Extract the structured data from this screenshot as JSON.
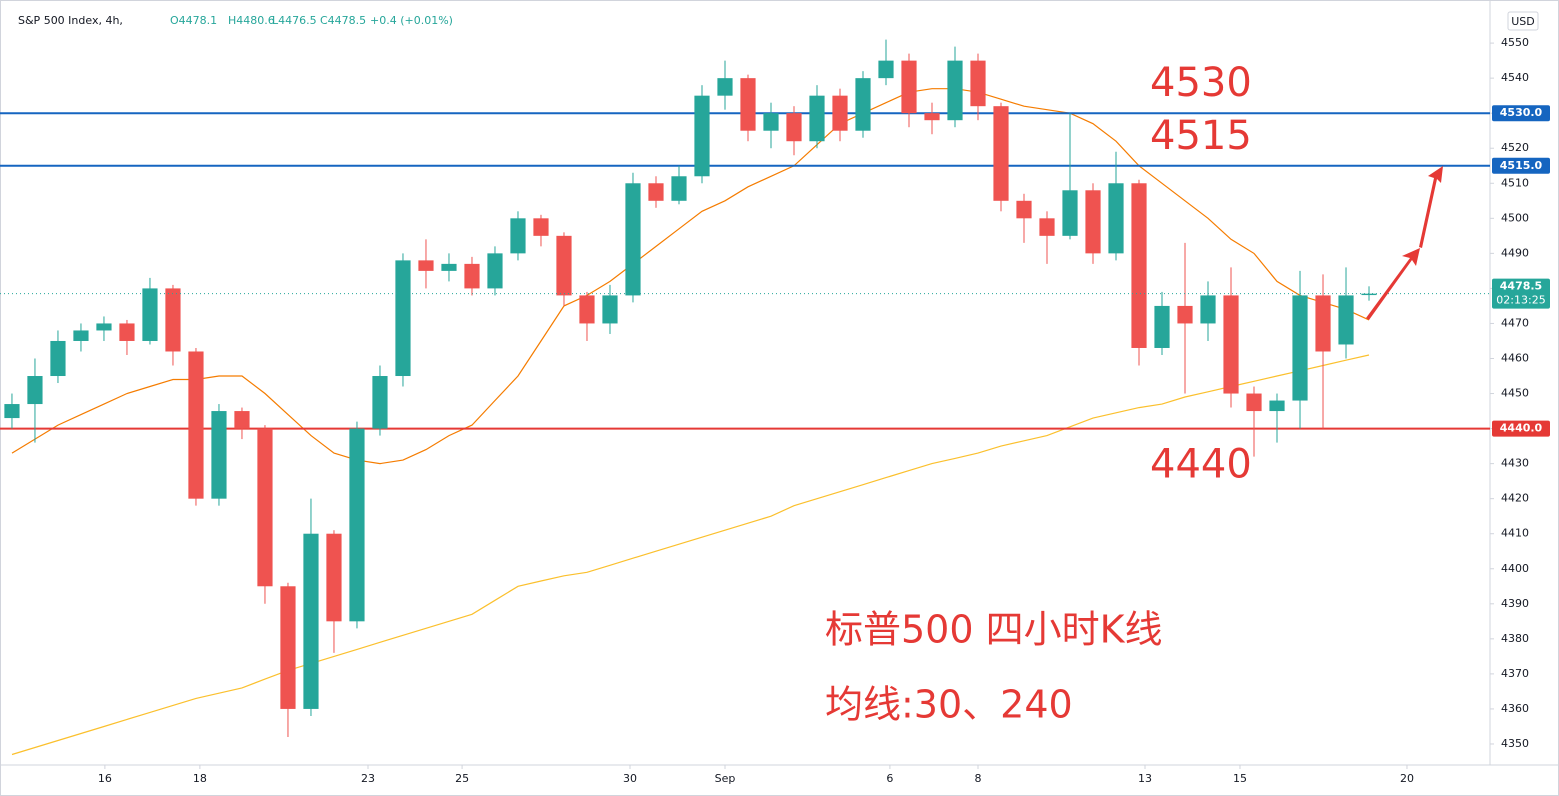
{
  "chart_data": {
    "type": "candlestick",
    "title": "S&P 500 Index, 4h,",
    "ohlc_legend": [
      "O4478.1",
      "H4480.6",
      "L4476.5",
      "C4478.5",
      "+0.4 (+0.01%)"
    ],
    "currency": "USD",
    "xlim": [
      -0.52,
      64.26
    ],
    "ylim": [
      4344,
      4562.3
    ],
    "xticks": [
      {
        "value": 4.04,
        "label": "16"
      },
      {
        "value": 8.17,
        "label": "18"
      },
      {
        "value": 15.48,
        "label": "23"
      },
      {
        "value": 19.57,
        "label": "25"
      },
      {
        "value": 26.87,
        "label": "30"
      },
      {
        "value": 31,
        "label": "Sep"
      },
      {
        "value": 38.17,
        "label": "6"
      },
      {
        "value": 42,
        "label": "8"
      },
      {
        "value": 49.26,
        "label": "13"
      },
      {
        "value": 53.39,
        "label": "15"
      },
      {
        "value": 60.65,
        "label": "20"
      }
    ],
    "yticks": [
      4350,
      4360,
      4370,
      4380,
      4390,
      4400,
      4410,
      4420,
      4430,
      4440,
      4450,
      4460,
      4470,
      4480,
      4490,
      4500,
      4510,
      4520,
      4530,
      4540,
      4550
    ],
    "grid": false,
    "up_color": "#26a69a",
    "down_color": "#ef5350",
    "ohlc": {
      "open": [
        4443,
        4447,
        4455,
        4465,
        4468,
        4470,
        4465,
        4480,
        4462,
        4420,
        4445,
        4440,
        4395,
        4360,
        4410,
        4385,
        4440,
        4455,
        4488,
        4485,
        4487,
        4480,
        4490,
        4500,
        4495,
        4478,
        4470,
        4478,
        4510,
        4505,
        4512,
        4535,
        4540,
        4525,
        4530,
        4522,
        4535,
        4525,
        4540,
        4545,
        4530,
        4528,
        4545,
        4532,
        4505,
        4500,
        4495,
        4508,
        4490,
        4510,
        4463,
        4475,
        4470,
        4478,
        4450,
        4445,
        4448,
        4478,
        4464,
        4478.1
      ],
      "high": [
        4450,
        4460,
        4468,
        4470,
        4472,
        4471,
        4483,
        4481,
        4463,
        4447,
        4446,
        4441,
        4396,
        4420,
        4411,
        4442,
        4458,
        4490,
        4494,
        4490,
        4489,
        4492,
        4502,
        4501,
        4496,
        4479,
        4481,
        4513,
        4512,
        4515,
        4538,
        4545,
        4541,
        4533,
        4532,
        4538,
        4537,
        4542,
        4551,
        4547,
        4533,
        4549,
        4547,
        4533,
        4507,
        4502,
        4530,
        4510,
        4519,
        4511,
        4479,
        4493,
        4482,
        4486,
        4452,
        4450,
        4485,
        4484,
        4486,
        4480.6
      ],
      "low": [
        4440,
        4436,
        4453,
        4462,
        4465,
        4461,
        4464,
        4458,
        4418,
        4418,
        4437,
        4390,
        4352,
        4358,
        4376,
        4383,
        4438,
        4452,
        4480,
        4482,
        4478,
        4478,
        4488,
        4492,
        4475,
        4465,
        4467,
        4476,
        4503,
        4504,
        4510,
        4531,
        4522,
        4520,
        4518,
        4520,
        4522,
        4523,
        4538,
        4526,
        4524,
        4526,
        4528,
        4502,
        4493,
        4487,
        4494,
        4487,
        4488,
        4458,
        4461,
        4450,
        4465,
        4446,
        4432,
        4436,
        4440,
        4440,
        4460,
        4476.5
      ],
      "close": [
        4447,
        4455,
        4465,
        4468,
        4470,
        4465,
        4480,
        4462,
        4420,
        4445,
        4440,
        4395,
        4360,
        4410,
        4385,
        4440,
        4455,
        4488,
        4485,
        4487,
        4480,
        4490,
        4500,
        4495,
        4478,
        4470,
        4478,
        4510,
        4505,
        4512,
        4535,
        4540,
        4525,
        4530,
        4522,
        4535,
        4525,
        4540,
        4545,
        4530,
        4528,
        4545,
        4532,
        4505,
        4500,
        4495,
        4508,
        4490,
        4510,
        4463,
        4475,
        4470,
        4478,
        4450,
        4445,
        4448,
        4478,
        4462,
        4478,
        4478.5
      ]
    },
    "ma_lines": [
      {
        "color": "#f57c00",
        "values": [
          4433,
          4437,
          4441,
          4444,
          4447,
          4450,
          4452,
          4454,
          4454,
          4455,
          4455,
          4450,
          4444,
          4438,
          4433,
          4431,
          4430,
          4431,
          4434,
          4438,
          4441,
          4448,
          4455,
          4465,
          4475,
          4478,
          4482,
          4487,
          4492,
          4497,
          4502,
          4505,
          4509,
          4512,
          4515,
          4521,
          4527,
          4530,
          4533,
          4536,
          4537,
          4537,
          4536,
          4534,
          4532,
          4531,
          4530,
          4527,
          4522,
          4515,
          4510,
          4505,
          4500,
          4494,
          4490,
          4482,
          4478,
          4476,
          4474,
          4471
        ]
      },
      {
        "color": "#fbc02d",
        "values": [
          4347,
          4349,
          4351,
          4353,
          4355,
          4357,
          4359,
          4361,
          4363,
          4364.5,
          4366,
          4368.5,
          4371,
          4373,
          4375,
          4377,
          4379,
          4381,
          4383,
          4385,
          4387,
          4391,
          4395,
          4396.5,
          4398,
          4399,
          4401,
          4403,
          4405,
          4407,
          4409,
          4411,
          4413,
          4415,
          4418,
          4420,
          4422,
          4424,
          4426,
          4428,
          4430,
          4431.5,
          4433,
          4435,
          4436.5,
          4438,
          4440.5,
          4443,
          4444.5,
          4446,
          4447,
          4449,
          4450.5,
          4452,
          4453.5,
          4455,
          4456.5,
          4458,
          4459.5,
          4461
        ]
      }
    ],
    "levels": [
      {
        "value": 4530,
        "color": "#1565c0",
        "label": "4530.0",
        "annotation": "4530"
      },
      {
        "value": 4515,
        "color": "#1565c0",
        "label": "4515.0",
        "annotation": "4515"
      },
      {
        "value": 4440,
        "color": "#e53935",
        "label": "4440.0",
        "annotation": "4440"
      }
    ],
    "price_tag": {
      "value": 4478.5,
      "countdown": "02:13:25"
    },
    "notes": [
      "标普500 四小时K线",
      "均线:30、240"
    ]
  }
}
